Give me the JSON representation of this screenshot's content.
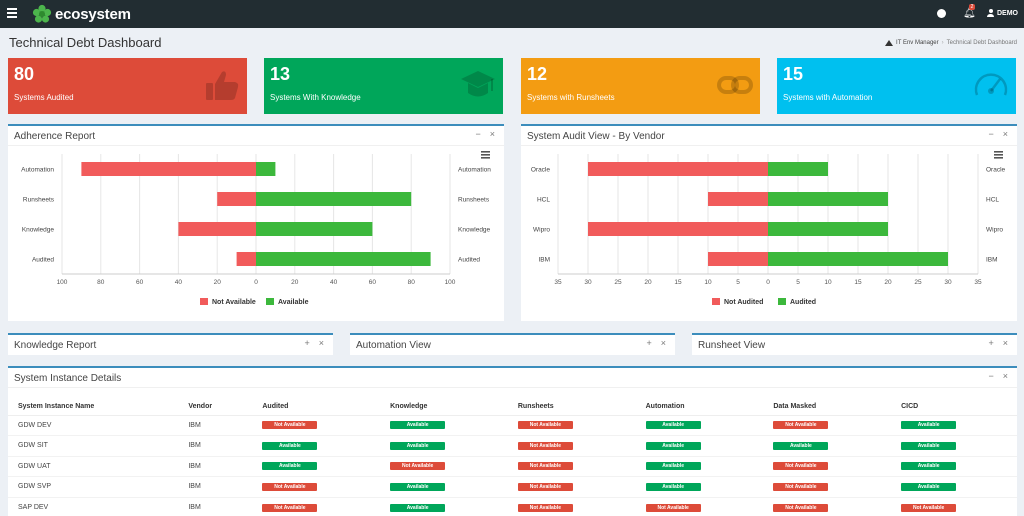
{
  "app": {
    "brand": "ecosystem",
    "user": "DEMO",
    "notification_count": "2"
  },
  "page": {
    "title": "Technical Debt Dashboard"
  },
  "breadcrumb": {
    "parent": "IT Env Manager",
    "current": "Technical Debt Dashboard"
  },
  "stats": [
    {
      "value": "80",
      "label": "Systems Audited",
      "color": "#dd4b39",
      "icon": "thumbs-up-icon"
    },
    {
      "value": "13",
      "label": "Systems With Knowledge",
      "color": "#00a65a",
      "icon": "graduation-cap-icon"
    },
    {
      "value": "12",
      "label": "Systems with Runsheets",
      "color": "#f39c12",
      "icon": "link-icon"
    },
    {
      "value": "15",
      "label": "Systems with Automation",
      "color": "#00c0ef",
      "icon": "dashboard-gauge-icon"
    }
  ],
  "panels": {
    "adherence": {
      "title": "Adherence Report"
    },
    "vendor": {
      "title": "System Audit View - By Vendor"
    },
    "knowledge": {
      "title": "Knowledge Report"
    },
    "automation": {
      "title": "Automation View"
    },
    "runsheet": {
      "title": "Runsheet View"
    },
    "instances": {
      "title": "System Instance Details"
    }
  },
  "tools": {
    "minimize": "−",
    "close": "×",
    "expand": "+"
  },
  "chart_data": [
    {
      "type": "bar",
      "orientation": "horizontal-diverging",
      "categories": [
        "Automation",
        "Runsheets",
        "Knowledge",
        "Audited"
      ],
      "series": [
        {
          "name": "Not Available",
          "values": [
            90,
            20,
            40,
            10
          ],
          "color": "#f15b5b"
        },
        {
          "name": "Available",
          "values": [
            10,
            80,
            60,
            90
          ],
          "color": "#3cb83c"
        }
      ],
      "xticks": [
        "100",
        "80",
        "60",
        "40",
        "20",
        "0",
        "20",
        "40",
        "60",
        "80",
        "100"
      ],
      "xlim": [
        -100,
        100
      ],
      "legend": "bottom-center",
      "grid": true
    },
    {
      "type": "bar",
      "orientation": "horizontal-diverging",
      "categories": [
        "Oracle",
        "HCL",
        "Wipro",
        "IBM"
      ],
      "series": [
        {
          "name": "Not Audited",
          "values": [
            30,
            10,
            30,
            10
          ],
          "color": "#f15b5b"
        },
        {
          "name": "Audited",
          "values": [
            10,
            20,
            20,
            30
          ],
          "color": "#3cb83c"
        }
      ],
      "xticks": [
        "35",
        "30",
        "25",
        "20",
        "15",
        "10",
        "5",
        "0",
        "5",
        "10",
        "15",
        "20",
        "25",
        "30",
        "35"
      ],
      "xlim": [
        -35,
        35
      ],
      "legend": "bottom-center",
      "grid": true
    }
  ],
  "table": {
    "headers": [
      "System Instance Name",
      "Vendor",
      "Audited",
      "Knowledge",
      "Runsheets",
      "Automation",
      "Data Masked",
      "CICD"
    ],
    "status_labels": {
      "na": "Not Available",
      "av": "Available"
    },
    "rows": [
      {
        "name": "GDW DEV",
        "vendor": "IBM",
        "flags": [
          "na",
          "av",
          "na",
          "av",
          "na",
          "av"
        ]
      },
      {
        "name": "GDW SIT",
        "vendor": "IBM",
        "flags": [
          "av",
          "av",
          "na",
          "av",
          "av",
          "av"
        ]
      },
      {
        "name": "GDW UAT",
        "vendor": "IBM",
        "flags": [
          "av",
          "na",
          "na",
          "av",
          "na",
          "av"
        ]
      },
      {
        "name": "GDW SVP",
        "vendor": "IBM",
        "flags": [
          "na",
          "av",
          "na",
          "av",
          "na",
          "av"
        ]
      },
      {
        "name": "SAP DEV",
        "vendor": "IBM",
        "flags": [
          "na",
          "av",
          "na",
          "na",
          "na",
          "na"
        ]
      }
    ]
  }
}
